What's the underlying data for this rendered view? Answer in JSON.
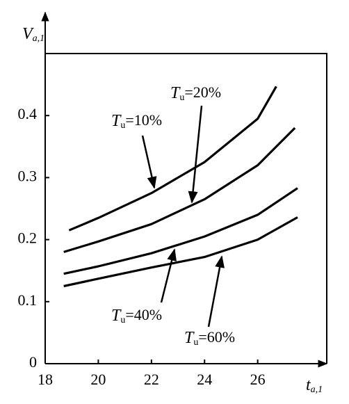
{
  "chart_data": {
    "type": "line",
    "ylabel": {
      "symbol": "V",
      "subscript": "a,1"
    },
    "xlabel": {
      "symbol": "t",
      "subscript": "a,1"
    },
    "xlim": [
      18,
      28.6
    ],
    "ylim": [
      0,
      0.5
    ],
    "xticks": [
      18,
      20,
      22,
      24,
      26
    ],
    "yticks": [
      0,
      0.1,
      0.2,
      0.3,
      0.4
    ],
    "color": "#000000",
    "series": [
      {
        "name": {
          "symbol": "T",
          "subscript": "u",
          "text": "=10%"
        },
        "x": [
          18.9,
          20,
          22,
          24,
          26,
          26.7
        ],
        "values": [
          0.215,
          0.235,
          0.275,
          0.325,
          0.395,
          0.447
        ]
      },
      {
        "name": {
          "symbol": "T",
          "subscript": "u",
          "text": "=20%"
        },
        "x": [
          18.7,
          20,
          22,
          24,
          26,
          27.4
        ],
        "values": [
          0.18,
          0.197,
          0.225,
          0.265,
          0.32,
          0.38
        ]
      },
      {
        "name": {
          "symbol": "T",
          "subscript": "u",
          "text": "=40%"
        },
        "x": [
          18.7,
          20,
          22,
          24,
          26,
          27.5
        ],
        "values": [
          0.145,
          0.157,
          0.178,
          0.205,
          0.24,
          0.283
        ]
      },
      {
        "name": {
          "symbol": "T",
          "subscript": "u",
          "text": "=60%"
        },
        "x": [
          18.7,
          20,
          22,
          24,
          26,
          27.5
        ],
        "values": [
          0.125,
          0.137,
          0.155,
          0.172,
          0.2,
          0.236
        ]
      }
    ]
  }
}
